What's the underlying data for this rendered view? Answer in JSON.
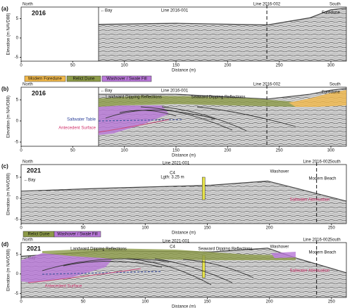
{
  "panels": [
    {
      "label": "(a)",
      "year": "2016",
      "north": "North",
      "south": "South",
      "bay": "←Bay",
      "line_main": "Line 2016-001",
      "line_cross": "Line 2016-002",
      "y_label": "Elevation (m NAVD88)",
      "x_label": "Distance (m)",
      "xlim": [
        0,
        315
      ],
      "ylim": [
        -6,
        8
      ],
      "xticks": [
        0,
        50,
        100,
        150,
        200,
        250,
        300
      ],
      "yticks": [
        5,
        0,
        -5
      ],
      "annotations": [
        "Foredune"
      ]
    },
    {
      "label": "(b)",
      "year": "2016",
      "north": "North",
      "south": "South",
      "bay": "←Bay",
      "line_main": "Line 2016-001",
      "line_cross": "Line 2016-002",
      "y_label": "Elevation (m NAVD88)",
      "x_label": "Distance (m)",
      "xlim": [
        0,
        315
      ],
      "ylim": [
        -6,
        8
      ],
      "xticks": [
        0,
        50,
        100,
        150,
        200,
        250,
        300
      ],
      "yticks": [
        5,
        0,
        -5
      ],
      "legend": [
        "Modern Foredune",
        "Relict Dune",
        "Washover / Swale Fill"
      ],
      "annotations": [
        "Foredune",
        "Landward Dipping Reflections",
        "Seaward Dipping Reflections",
        "Saltwater Table",
        "Antecedent Surface"
      ]
    },
    {
      "label": "(c)",
      "year": "2021",
      "north": "North",
      "south": "South",
      "bay": "←Bay",
      "line_main": "Line 2021-001",
      "line_cross": "Line 2016-002",
      "y_label": "Elevation (m NAVD88)",
      "x_label": "Distance (m)",
      "xlim": [
        0,
        262
      ],
      "ylim": [
        -6,
        8
      ],
      "xticks": [
        0,
        50,
        100,
        150,
        200,
        250
      ],
      "yticks": [
        5,
        0,
        -5
      ],
      "annotations": [
        "C4",
        "Lgth: 3.25 m",
        "Washover",
        "Modern Beach",
        "Saltwater Attenuation"
      ]
    },
    {
      "label": "(d)",
      "year": "2021",
      "north": "North",
      "south": "South",
      "bay": "←Bay",
      "line_main": "Line 2021-001",
      "line_cross": "Line 2016-002",
      "y_label": "Elevation (m NAVD88)",
      "x_label": "Distance (m)",
      "xlim": [
        0,
        262
      ],
      "ylim": [
        -6,
        8
      ],
      "xticks": [
        0,
        50,
        100,
        150,
        200,
        250
      ],
      "yticks": [
        5,
        0,
        -5
      ],
      "legend": [
        "Relict Dune",
        "Washover / Swale Fill"
      ],
      "annotations": [
        "C4",
        "Washover",
        "Modern Beach",
        "Saltwater Attenuation",
        "Landward Dipping Reflections",
        "Seaward Dipping Reflections",
        "Antecedent Surface"
      ]
    }
  ]
}
